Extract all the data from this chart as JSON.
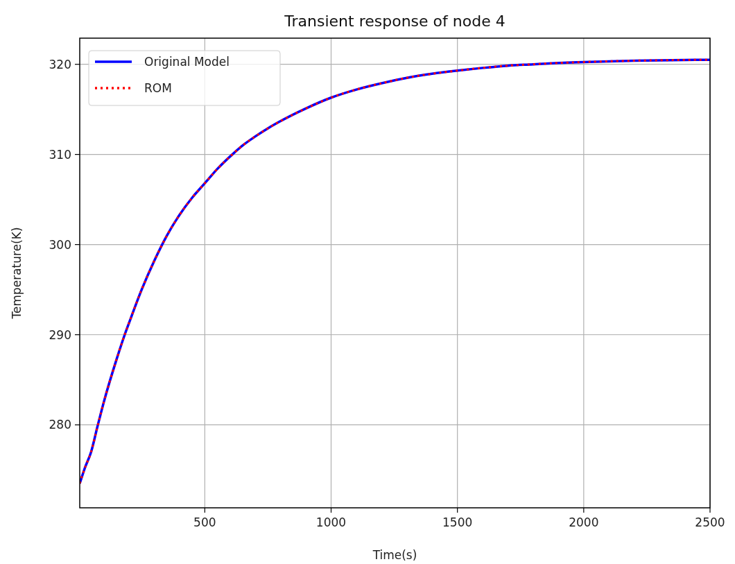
{
  "chart_data": {
    "type": "line",
    "title": "Transient response of node 4",
    "xlabel": "Time(s)",
    "ylabel": "Temperature(K)",
    "x": [
      5,
      25,
      50,
      75,
      100,
      150,
      183,
      200,
      250,
      300,
      350,
      400,
      450,
      500,
      550,
      609,
      650,
      700,
      750,
      800,
      900,
      1000,
      1100,
      1200,
      1300,
      1400,
      1500,
      1600,
      1700,
      1800,
      1900,
      2000,
      2200,
      2400,
      2500
    ],
    "series": [
      {
        "name": "Original Model",
        "color": "#0000ff",
        "line_style": "solid",
        "values": [
          273.5,
          275.2,
          277.0,
          279.8,
          282.5,
          287.2,
          290.0,
          291.3,
          295.0,
          298.2,
          301.0,
          303.3,
          305.2,
          306.8,
          308.4,
          310.0,
          311.0,
          312.0,
          312.9,
          313.7,
          315.1,
          316.3,
          317.2,
          317.9,
          318.5,
          318.95,
          319.3,
          319.6,
          319.85,
          320.0,
          320.15,
          320.25,
          320.4,
          320.48,
          320.5
        ]
      },
      {
        "name": "ROM",
        "color": "#ff0000",
        "line_style": "dotted",
        "values": [
          273.5,
          275.2,
          277.0,
          279.8,
          282.5,
          287.2,
          290.0,
          291.3,
          295.0,
          298.2,
          301.0,
          303.3,
          305.2,
          306.8,
          308.4,
          310.0,
          311.0,
          312.0,
          312.9,
          313.7,
          315.1,
          316.3,
          317.2,
          317.9,
          318.5,
          318.95,
          319.3,
          319.6,
          319.85,
          320.0,
          320.15,
          320.25,
          320.4,
          320.48,
          320.5
        ]
      }
    ],
    "xlim": [
      5,
      2500
    ],
    "xticks": [
      500,
      1000,
      1500,
      2000,
      2500
    ],
    "ylim": [
      270.8,
      322.9
    ],
    "yticks": [
      280,
      290,
      300,
      310,
      320
    ],
    "grid": true,
    "legend": "top left",
    "marker": "none"
  }
}
